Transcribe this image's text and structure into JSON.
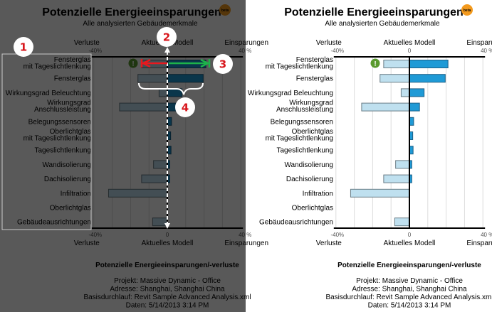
{
  "chart_data": {
    "type": "bar",
    "orientation": "horizontal",
    "title": "Potenzielle Energieeinsparungen",
    "badge": "beta",
    "subtitle": "Alle analysierten Gebäudemerkmale",
    "axis_labels": {
      "left": "Verluste",
      "center": "Aktuelles Modell",
      "right": "Einsparungen"
    },
    "ticks": {
      "min": "-40%",
      "zero": "0",
      "max": "40 %"
    },
    "xlim": [
      -40,
      40
    ],
    "grid_step": 10,
    "grid": true,
    "categories": [
      [
        "Fensterglas",
        "mit Tageslichtlenkung"
      ],
      [
        "Fensterglas"
      ],
      [
        "Wirkungsgrad Beleuchtung"
      ],
      [
        "Wirkungsgrad",
        "Anschlussleistung"
      ],
      [
        "Belegungssensoren"
      ],
      [
        "Oberlichtglas",
        "mit Tageslichtlenkung"
      ],
      [
        "Tageslichtlenkung"
      ],
      [
        "Wandisolierung"
      ],
      [
        "Dachisolierung"
      ],
      [
        "Infiltration"
      ],
      [
        "Oberlichtglas"
      ],
      [
        "Gebäudeausrichtungen"
      ]
    ],
    "series": [
      {
        "name": "Verluste",
        "color": "#bfe0ef",
        "values": [
          -14,
          -16,
          -4.5,
          -26,
          0,
          0,
          0,
          -7.5,
          -14,
          -32,
          0,
          -8
        ]
      },
      {
        "name": "Einsparungen",
        "color": "#1f9ad6",
        "values": [
          21,
          19.5,
          8,
          5.5,
          2.3,
          1.8,
          2,
          1.3,
          1.3,
          0,
          0,
          0
        ]
      }
    ],
    "warning_icon_row": 0,
    "footer": {
      "heading": "Potenzielle Energieeinsparungen/-verluste",
      "lines": [
        "Projekt: Massive Dynamic - Office",
        "Adresse: Shanghai, Shanghai China",
        "Basisdurchlauf: Revit Sample Advanced Analysis.xml",
        "Daten: 5/14/2013 3:14 PM"
      ]
    }
  },
  "callouts": [
    "1",
    "2",
    "3",
    "4"
  ],
  "colors": {
    "overlay": "#595959",
    "loss_arrow": "#e8181e",
    "gain_arrow": "#1db34a",
    "badge": "#f39a1e",
    "warning": "#5a9a2e"
  }
}
